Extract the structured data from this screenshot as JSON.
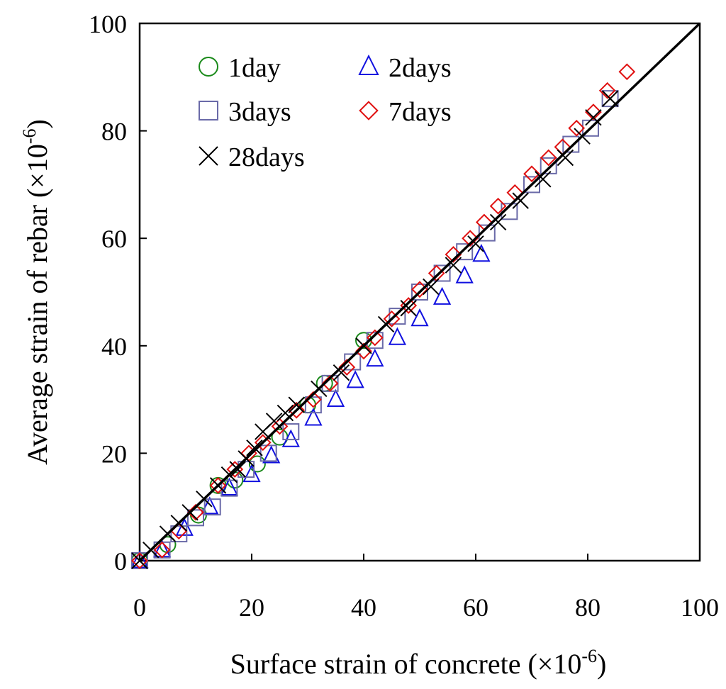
{
  "chart_data": {
    "type": "scatter",
    "title": "",
    "xlabel": "Surface strain of concrete (×10",
    "xlabel_exp": "-6",
    "xlabel_close": ")",
    "ylabel": "Average strain of rebar (×10",
    "ylabel_exp": "-6",
    "ylabel_close": ")",
    "xlim": [
      0,
      100
    ],
    "ylim": [
      0,
      100
    ],
    "xticks": [
      "0",
      "20",
      "40",
      "60",
      "80",
      "100"
    ],
    "yticks": [
      "0",
      "20",
      "40",
      "60",
      "80",
      "100"
    ],
    "grid": false,
    "legend_position": "top-left",
    "reference_line": {
      "name": "y = x",
      "x": [
        0,
        100
      ],
      "y": [
        0,
        100
      ],
      "color": "#000000"
    },
    "series": [
      {
        "name": "1day",
        "marker": "circle",
        "color": "#1a8a1a",
        "points": [
          [
            0,
            0
          ],
          [
            5,
            3
          ],
          [
            10.5,
            8.5
          ],
          [
            14,
            14
          ],
          [
            17,
            15
          ],
          [
            21,
            18
          ],
          [
            25,
            23
          ],
          [
            30,
            29
          ],
          [
            33,
            33
          ],
          [
            40,
            41
          ]
        ]
      },
      {
        "name": "2days",
        "marker": "triangle",
        "color": "#1010e0",
        "points": [
          [
            0,
            0
          ],
          [
            4,
            2
          ],
          [
            8,
            6
          ],
          [
            12.5,
            10
          ],
          [
            16,
            13.5
          ],
          [
            20,
            16
          ],
          [
            23.5,
            19.5
          ],
          [
            27,
            22.5
          ],
          [
            31,
            26.5
          ],
          [
            35,
            30
          ],
          [
            38.5,
            33.5
          ],
          [
            42,
            37.5
          ],
          [
            46,
            41.5
          ],
          [
            50,
            45
          ],
          [
            54,
            49
          ],
          [
            58,
            53
          ],
          [
            61,
            57
          ]
        ]
      },
      {
        "name": "3days",
        "marker": "square",
        "color": "#6a6aa8",
        "points": [
          [
            0,
            0
          ],
          [
            4,
            2
          ],
          [
            7,
            5
          ],
          [
            10,
            8
          ],
          [
            13,
            10
          ],
          [
            16,
            13.5
          ],
          [
            19,
            17
          ],
          [
            23,
            20
          ],
          [
            27,
            24
          ],
          [
            31,
            29
          ],
          [
            34,
            33
          ],
          [
            38,
            37
          ],
          [
            42,
            41
          ],
          [
            46,
            45.5
          ],
          [
            50,
            50
          ],
          [
            54,
            53.5
          ],
          [
            58,
            57.5
          ],
          [
            62,
            61
          ],
          [
            66,
            65
          ],
          [
            70,
            70
          ],
          [
            73,
            73.5
          ],
          [
            77,
            77.5
          ],
          [
            80.5,
            80.5
          ],
          [
            84,
            86
          ]
        ]
      },
      {
        "name": "7days",
        "marker": "diamond",
        "color": "#e01010",
        "points": [
          [
            0,
            0
          ],
          [
            4,
            2
          ],
          [
            7,
            5.5
          ],
          [
            10,
            9
          ],
          [
            14,
            14
          ],
          [
            17,
            17
          ],
          [
            19.5,
            20
          ],
          [
            22,
            22
          ],
          [
            25,
            25
          ],
          [
            28,
            28
          ],
          [
            31,
            30
          ],
          [
            34,
            33
          ],
          [
            37,
            36
          ],
          [
            40,
            39
          ],
          [
            42,
            41.5
          ],
          [
            45,
            45
          ],
          [
            48,
            47.5
          ],
          [
            50,
            50.5
          ],
          [
            53,
            53.5
          ],
          [
            56,
            57
          ],
          [
            59,
            60
          ],
          [
            61.5,
            63
          ],
          [
            64,
            66
          ],
          [
            67,
            68.5
          ],
          [
            70,
            72
          ],
          [
            73,
            75
          ],
          [
            75.5,
            77
          ],
          [
            78,
            80.5
          ],
          [
            81,
            83.5
          ],
          [
            83.5,
            87.5
          ],
          [
            87,
            91
          ]
        ]
      },
      {
        "name": "28days",
        "marker": "cross",
        "color": "#000000",
        "points": [
          [
            0,
            0
          ],
          [
            2,
            2
          ],
          [
            5,
            5
          ],
          [
            7,
            7
          ],
          [
            9,
            9
          ],
          [
            11.5,
            11.5
          ],
          [
            14,
            14
          ],
          [
            16,
            16
          ],
          [
            17.5,
            17
          ],
          [
            19,
            19
          ],
          [
            20.5,
            21
          ],
          [
            22,
            24
          ],
          [
            24,
            26
          ],
          [
            26,
            27.5
          ],
          [
            28,
            29
          ],
          [
            32,
            32
          ],
          [
            36,
            35
          ],
          [
            40,
            40
          ],
          [
            44,
            44
          ],
          [
            48,
            47
          ],
          [
            52,
            51
          ],
          [
            56,
            55
          ],
          [
            60,
            59
          ],
          [
            64,
            63
          ],
          [
            68,
            67
          ],
          [
            72,
            71
          ],
          [
            76,
            75
          ],
          [
            79,
            79
          ],
          [
            81,
            82.5
          ],
          [
            84,
            86
          ]
        ]
      }
    ]
  }
}
